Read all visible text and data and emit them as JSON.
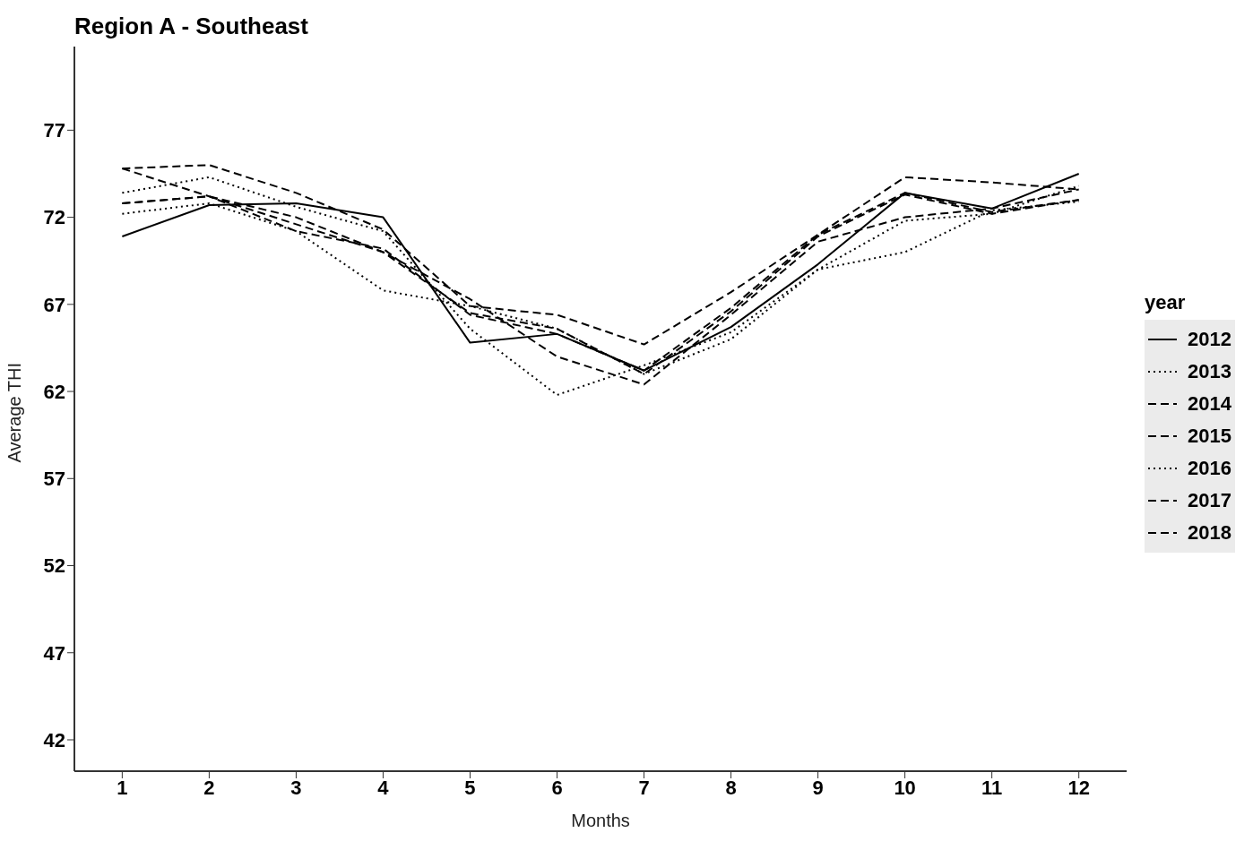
{
  "chart_data": {
    "type": "line",
    "title": "Region A - Southeast",
    "xlabel": "Months",
    "ylabel": "Average THI",
    "legend_title": "year",
    "legend": "right",
    "grid": false,
    "x": [
      1,
      2,
      3,
      4,
      5,
      6,
      7,
      8,
      9,
      10,
      11,
      12
    ],
    "xlim": [
      0.45,
      12.55
    ],
    "xticks": [
      1,
      2,
      3,
      4,
      5,
      6,
      7,
      8,
      9,
      10,
      11,
      12
    ],
    "ylim": [
      40.2,
      81.8
    ],
    "yticks": [
      42,
      47,
      52,
      57,
      62,
      67,
      72,
      77
    ],
    "series": [
      {
        "name": "2012",
        "color": "#000000",
        "line_style": "solid",
        "values": [
          70.9,
          72.7,
          72.8,
          72.0,
          64.8,
          65.3,
          63.2,
          65.7,
          69.3,
          73.4,
          72.5,
          74.5
        ]
      },
      {
        "name": "2013",
        "color": "#000000",
        "line_style": "dotted",
        "values": [
          72.2,
          72.8,
          71.2,
          67.8,
          66.9,
          65.6,
          63.0,
          65.0,
          69.0,
          70.0,
          72.4,
          72.9
        ]
      },
      {
        "name": "2014",
        "color": "#000000",
        "line_style": "dashed",
        "values": [
          72.8,
          73.2,
          71.6,
          70.0,
          66.5,
          65.6,
          63.0,
          66.6,
          70.9,
          73.3,
          72.2,
          73.0
        ]
      },
      {
        "name": "2015",
        "color": "#000000",
        "line_style": "dashed",
        "values": [
          74.8,
          75.0,
          73.4,
          71.3,
          66.9,
          66.4,
          64.7,
          67.7,
          71.0,
          74.3,
          74.0,
          73.6
        ]
      },
      {
        "name": "2016",
        "color": "#000000",
        "line_style": "dotted",
        "values": [
          73.4,
          74.3,
          72.6,
          71.2,
          65.6,
          61.8,
          63.5,
          65.4,
          69.0,
          71.8,
          72.2,
          73.8
        ]
      },
      {
        "name": "2017",
        "color": "#000000",
        "line_style": "dashed",
        "values": [
          72.8,
          73.2,
          72.0,
          70.0,
          67.3,
          64.0,
          62.4,
          66.4,
          70.6,
          72.0,
          72.5,
          73.6
        ]
      },
      {
        "name": "2018",
        "color": "#000000",
        "line_style": "dashed",
        "values": [
          74.8,
          73.2,
          71.2,
          70.2,
          66.4,
          65.3,
          63.2,
          66.8,
          71.0,
          73.4,
          72.3,
          73.0
        ]
      }
    ]
  }
}
